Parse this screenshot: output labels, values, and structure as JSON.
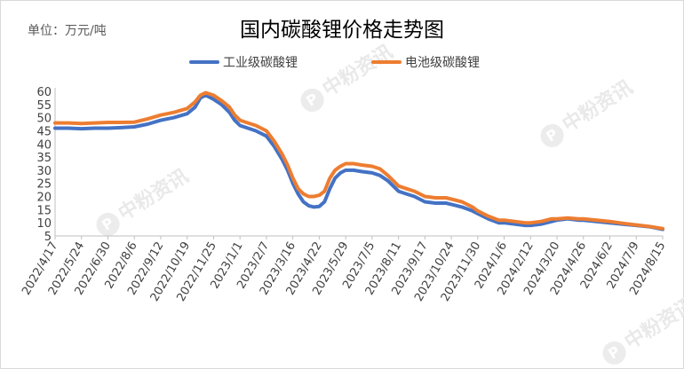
{
  "unit_label": "单位：万元/吨",
  "watermark": "中粉资讯",
  "colors": {
    "industrial": "#4472C4",
    "battery": "#ED7D31"
  },
  "chart_data": {
    "type": "line",
    "title": "国内碳酸锂价格走势图",
    "xlabel": "",
    "ylabel": "",
    "ylim": [
      5,
      60
    ],
    "yticks": [
      5,
      10,
      15,
      20,
      25,
      30,
      35,
      40,
      45,
      50,
      55,
      60
    ],
    "legend_position": "top-center",
    "grid": false,
    "categories": [
      "2022/4/17",
      "2022/5/24",
      "2022/6/30",
      "2022/8/6",
      "2022/9/12",
      "2022/10/19",
      "2022/11/25",
      "2023/1/1",
      "2023/2/7",
      "2023/3/16",
      "2023/4/22",
      "2023/5/29",
      "2023/7/5",
      "2023/8/11",
      "2023/9/17",
      "2023/10/24",
      "2023/11/30",
      "2024/1/6",
      "2024/2/12",
      "2024/3/20",
      "2024/4/26",
      "2024/6/2",
      "2024/7/9",
      "2024/8/15"
    ],
    "series": [
      {
        "name": "工业级碳酸锂",
        "points": [
          [
            0,
            46
          ],
          [
            0.5,
            46
          ],
          [
            1,
            45.8
          ],
          [
            1.5,
            46
          ],
          [
            2,
            46
          ],
          [
            2.5,
            46.2
          ],
          [
            3,
            46.5
          ],
          [
            3.5,
            47.5
          ],
          [
            4,
            49
          ],
          [
            4.5,
            50
          ],
          [
            5,
            51.5
          ],
          [
            5.3,
            54
          ],
          [
            5.5,
            57.5
          ],
          [
            5.7,
            58.5
          ],
          [
            6,
            57
          ],
          [
            6.3,
            55
          ],
          [
            6.6,
            52
          ],
          [
            6.8,
            49
          ],
          [
            7,
            47
          ],
          [
            7.3,
            46
          ],
          [
            7.6,
            45
          ],
          [
            8,
            43
          ],
          [
            8.3,
            39
          ],
          [
            8.6,
            34
          ],
          [
            8.8,
            30
          ],
          [
            9,
            25
          ],
          [
            9.2,
            21
          ],
          [
            9.4,
            18
          ],
          [
            9.6,
            16.5
          ],
          [
            9.8,
            16
          ],
          [
            10,
            16.2
          ],
          [
            10.2,
            18
          ],
          [
            10.4,
            23
          ],
          [
            10.6,
            27
          ],
          [
            10.8,
            29
          ],
          [
            11,
            30
          ],
          [
            11.3,
            30
          ],
          [
            11.6,
            29.5
          ],
          [
            12,
            29
          ],
          [
            12.3,
            28
          ],
          [
            12.6,
            26
          ],
          [
            13,
            22
          ],
          [
            13.3,
            21
          ],
          [
            13.6,
            20
          ],
          [
            14,
            18
          ],
          [
            14.4,
            17.5
          ],
          [
            14.8,
            17.5
          ],
          [
            15,
            17
          ],
          [
            15.4,
            16
          ],
          [
            15.8,
            14.5
          ],
          [
            16,
            13.5
          ],
          [
            16.4,
            11.5
          ],
          [
            16.8,
            10
          ],
          [
            17,
            10
          ],
          [
            17.4,
            9.5
          ],
          [
            17.8,
            9
          ],
          [
            18,
            9
          ],
          [
            18.4,
            9.5
          ],
          [
            18.8,
            10.5
          ],
          [
            19,
            11
          ],
          [
            19.4,
            11.5
          ],
          [
            19.8,
            11
          ],
          [
            20,
            11
          ],
          [
            20.5,
            10.5
          ],
          [
            21,
            10
          ],
          [
            21.5,
            9.5
          ],
          [
            22,
            9
          ],
          [
            22.5,
            8.5
          ],
          [
            23,
            7.5
          ]
        ]
      },
      {
        "name": "电池级碳酸锂",
        "points": [
          [
            0,
            48
          ],
          [
            0.5,
            48
          ],
          [
            1,
            47.8
          ],
          [
            1.5,
            48
          ],
          [
            2,
            48.2
          ],
          [
            2.5,
            48.2
          ],
          [
            3,
            48.3
          ],
          [
            3.5,
            49.5
          ],
          [
            4,
            51
          ],
          [
            4.5,
            52
          ],
          [
            5,
            53.5
          ],
          [
            5.3,
            56
          ],
          [
            5.5,
            58.5
          ],
          [
            5.7,
            59.5
          ],
          [
            6,
            58.5
          ],
          [
            6.3,
            56.5
          ],
          [
            6.6,
            54
          ],
          [
            6.8,
            51
          ],
          [
            7,
            49
          ],
          [
            7.3,
            48
          ],
          [
            7.6,
            47
          ],
          [
            8,
            45
          ],
          [
            8.3,
            41
          ],
          [
            8.6,
            36
          ],
          [
            8.8,
            32
          ],
          [
            9,
            27
          ],
          [
            9.2,
            23
          ],
          [
            9.4,
            21
          ],
          [
            9.6,
            20
          ],
          [
            9.8,
            20
          ],
          [
            10,
            20.5
          ],
          [
            10.2,
            22
          ],
          [
            10.4,
            27
          ],
          [
            10.6,
            30
          ],
          [
            10.8,
            31.5
          ],
          [
            11,
            32.5
          ],
          [
            11.3,
            32.5
          ],
          [
            11.6,
            32
          ],
          [
            12,
            31.5
          ],
          [
            12.3,
            30.5
          ],
          [
            12.6,
            28
          ],
          [
            13,
            24
          ],
          [
            13.3,
            23
          ],
          [
            13.6,
            22
          ],
          [
            14,
            20
          ],
          [
            14.4,
            19.5
          ],
          [
            14.8,
            19.5
          ],
          [
            15,
            19
          ],
          [
            15.4,
            18
          ],
          [
            15.8,
            16
          ],
          [
            16,
            14.5
          ],
          [
            16.4,
            12.5
          ],
          [
            16.8,
            11
          ],
          [
            17,
            11
          ],
          [
            17.4,
            10.5
          ],
          [
            17.8,
            10
          ],
          [
            18,
            10
          ],
          [
            18.4,
            10.5
          ],
          [
            18.8,
            11.5
          ],
          [
            19,
            11.5
          ],
          [
            19.4,
            11.8
          ],
          [
            19.8,
            11.5
          ],
          [
            20,
            11.5
          ],
          [
            20.5,
            11
          ],
          [
            21,
            10.5
          ],
          [
            21.5,
            9.8
          ],
          [
            22,
            9.2
          ],
          [
            22.5,
            8.6
          ],
          [
            23,
            7.8
          ]
        ]
      }
    ]
  }
}
